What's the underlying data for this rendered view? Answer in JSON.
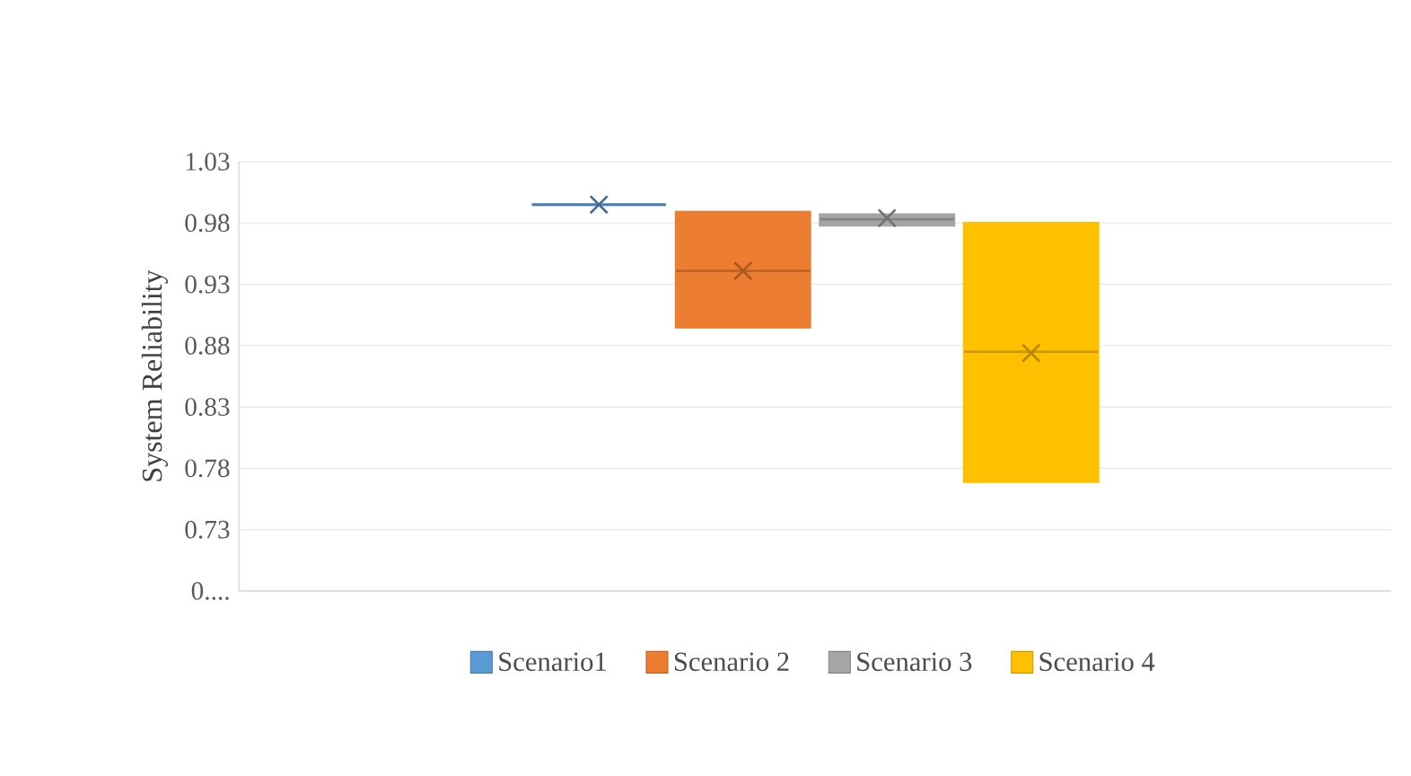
{
  "chart_data": {
    "type": "box",
    "ylabel": "System Reliability",
    "categories": [
      null
    ],
    "series": [
      {
        "name": "Scenario1",
        "color": "#5b9bd5",
        "boxes": [
          {
            "low": 0.995,
            "q1": 0.995,
            "median": 0.995,
            "q3": 0.995,
            "high": 0.995,
            "mean": 0.995
          }
        ]
      },
      {
        "name": "Scenario 2",
        "color": "#ed7d31",
        "boxes": [
          {
            "low": 0.895,
            "q1": 0.895,
            "median": 0.941,
            "q3": 0.989,
            "high": 0.989,
            "mean": 0.941
          }
        ]
      },
      {
        "name": "Scenario 3",
        "color": "#a5a5a5",
        "boxes": [
          {
            "low": 0.978,
            "q1": 0.978,
            "median": 0.983,
            "q3": 0.987,
            "high": 0.987,
            "mean": 0.984
          }
        ]
      },
      {
        "name": "Scenario 4",
        "color": "#ffc000",
        "boxes": [
          {
            "low": 0.769,
            "q1": 0.769,
            "median": 0.875,
            "q3": 0.98,
            "high": 0.98,
            "mean": 0.874
          }
        ]
      }
    ],
    "ylim": [
      0.68,
      1.03
    ],
    "yticks": [
      {
        "value": 0.68,
        "label": "0...."
      },
      0.73,
      0.78,
      0.83,
      0.88,
      0.93,
      0.98,
      1.03
    ],
    "grid": "y",
    "legend": "bottom",
    "tick_labels": "y"
  }
}
